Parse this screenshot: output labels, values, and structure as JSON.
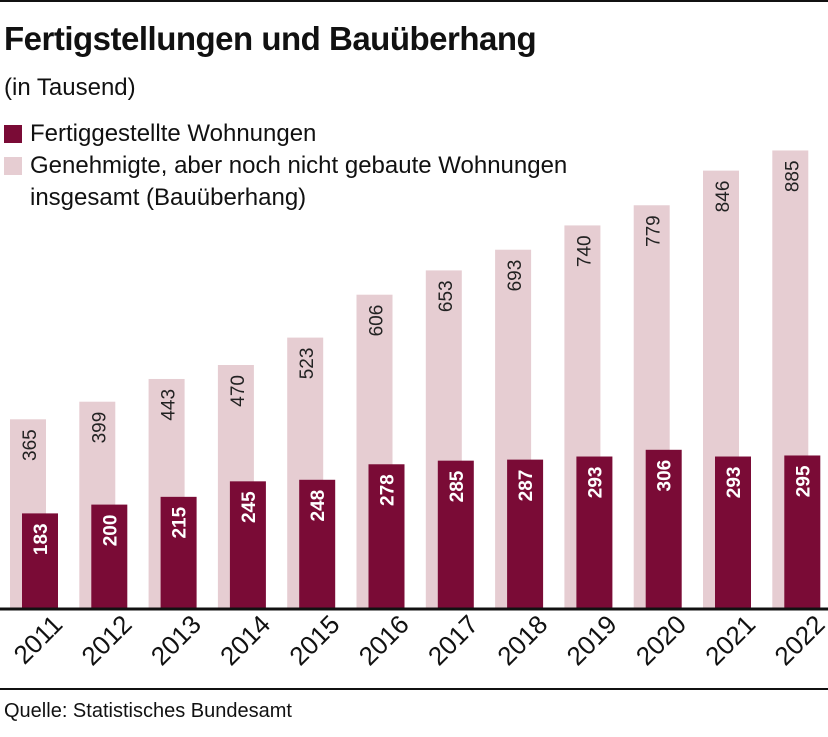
{
  "title": "Fertigstellungen und Bauüberhang",
  "subtitle": "(in Tausend)",
  "legend": [
    {
      "label": "Fertiggestellte Wohnungen",
      "color": "#7a0b36"
    },
    {
      "label": "Genehmigte, aber noch nicht gebaute Wohnungen insgesamt (Bauüberhang)",
      "color": "#e6cdd2"
    }
  ],
  "source": "Quelle: Statistisches Bundesamt",
  "chart_data": {
    "type": "bar",
    "title": "Fertigstellungen und Bauüberhang",
    "ylabel": "(in Tausend)",
    "xlabel": "",
    "ylim": [
      0,
      1000
    ],
    "categories": [
      "2011",
      "2012",
      "2013",
      "2014",
      "2015",
      "2016",
      "2017",
      "2018",
      "2019",
      "2020",
      "2021",
      "2022"
    ],
    "series": [
      {
        "name": "Genehmigte, aber noch nicht gebaute Wohnungen insgesamt (Bauüberhang)",
        "color": "#e6cdd2",
        "label_color": "#222222",
        "values": [
          365,
          399,
          443,
          470,
          523,
          606,
          653,
          693,
          740,
          779,
          846,
          885
        ]
      },
      {
        "name": "Fertiggestellte Wohnungen",
        "color": "#7a0b36",
        "label_color": "#ffffff",
        "values": [
          183,
          200,
          215,
          245,
          248,
          278,
          285,
          287,
          293,
          306,
          293,
          295
        ]
      }
    ]
  }
}
